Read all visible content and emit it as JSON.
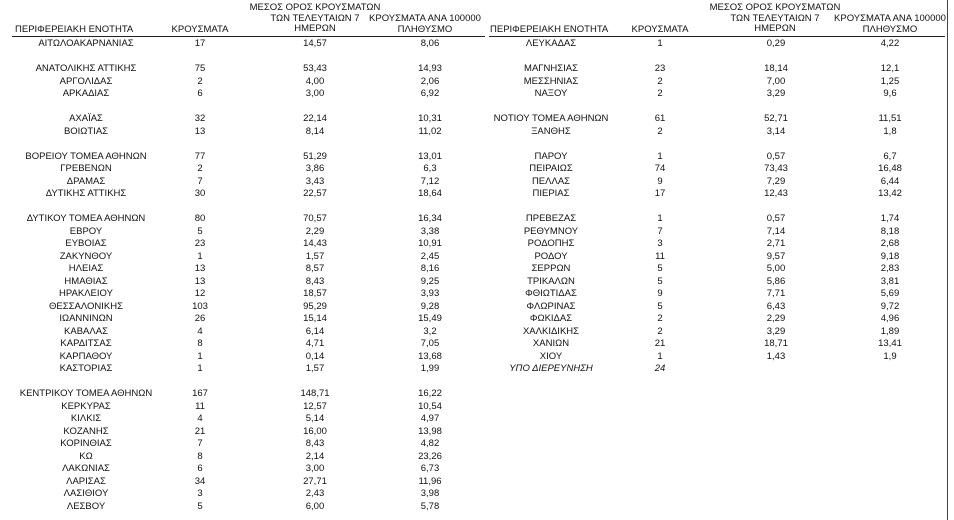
{
  "headers": {
    "region": "ΠΕΡΙΦΕΡΕΙΑΚΗ ΕΝΟΤΗΤΑ",
    "cases": "ΚΡΟΥΣΜΑΤΑ",
    "avg7_line1": "ΜΕΣΟΣ ΟΡΟΣ ΚΡΟΥΣΜΑΤΩΝ",
    "avg7_line2": "ΤΩΝ ΤΕΛΕΥΤΑΙΩΝ 7",
    "avg7_line3": "ΗΜΕΡΩΝ",
    "per100k_line1": "ΚΡΟΥΣΜΑΤΑ ΑΝΑ 100000",
    "per100k_line2": "ΠΛΗΘΥΣΜΟ"
  },
  "left_rows": [
    {
      "row": 0,
      "region": "ΑΙΤΩΛΟΑΚΑΡΝΑΝΙΑΣ",
      "cases": "17",
      "avg": "14,57",
      "per100k": "8,06"
    },
    {
      "row": 2,
      "region": "ΑΝΑΤΟΛΙΚΗΣ ΑΤΤΙΚΗΣ",
      "cases": "75",
      "avg": "53,43",
      "per100k": "14,93"
    },
    {
      "row": 3,
      "region": "ΑΡΓΟΛΙΔΑΣ",
      "cases": "2",
      "avg": "4,00",
      "per100k": "2,06"
    },
    {
      "row": 4,
      "region": "ΑΡΚΑΔΙΑΣ",
      "cases": "6",
      "avg": "3,00",
      "per100k": "6,92"
    },
    {
      "row": 6,
      "region": "ΑΧΑΪΑΣ",
      "cases": "32",
      "avg": "22,14",
      "per100k": "10,31"
    },
    {
      "row": 7,
      "region": "ΒΟΙΩΤΙΑΣ",
      "cases": "13",
      "avg": "8,14",
      "per100k": "11,02"
    },
    {
      "row": 9,
      "region": "ΒΟΡΕΙΟΥ ΤΟΜΕΑ ΑΘΗΝΩΝ",
      "cases": "77",
      "avg": "51,29",
      "per100k": "13,01"
    },
    {
      "row": 10,
      "region": "ΓΡΕΒΕΝΩΝ",
      "cases": "2",
      "avg": "3,86",
      "per100k": "6,3"
    },
    {
      "row": 11,
      "region": "ΔΡΑΜΑΣ",
      "cases": "7",
      "avg": "3,43",
      "per100k": "7,12"
    },
    {
      "row": 12,
      "region": "ΔΥΤΙΚΗΣ ΑΤΤΙΚΗΣ",
      "cases": "30",
      "avg": "22,57",
      "per100k": "18,64"
    },
    {
      "row": 14,
      "region": "ΔΥΤΙΚΟΥ ΤΟΜΕΑ ΑΘΗΝΩΝ",
      "cases": "80",
      "avg": "70,57",
      "per100k": "16,34"
    },
    {
      "row": 15,
      "region": "ΕΒΡΟΥ",
      "cases": "5",
      "avg": "2,29",
      "per100k": "3,38"
    },
    {
      "row": 16,
      "region": "ΕΥΒΟΙΑΣ",
      "cases": "23",
      "avg": "14,43",
      "per100k": "10,91"
    },
    {
      "row": 17,
      "region": "ΖΑΚΥΝΘΟΥ",
      "cases": "1",
      "avg": "1,57",
      "per100k": "2,45"
    },
    {
      "row": 18,
      "region": "ΗΛΕΙΑΣ",
      "cases": "13",
      "avg": "8,57",
      "per100k": "8,16"
    },
    {
      "row": 19,
      "region": "ΗΜΑΘΙΑΣ",
      "cases": "13",
      "avg": "8,43",
      "per100k": "9,25"
    },
    {
      "row": 20,
      "region": "ΗΡΑΚΛΕΙΟΥ",
      "cases": "12",
      "avg": "18,57",
      "per100k": "3,93"
    },
    {
      "row": 21,
      "region": "ΘΕΣΣΑΛΟΝΙΚΗΣ",
      "cases": "103",
      "avg": "95,29",
      "per100k": "9,28"
    },
    {
      "row": 22,
      "region": "ΙΩΑΝΝΙΝΩΝ",
      "cases": "26",
      "avg": "15,14",
      "per100k": "15,49"
    },
    {
      "row": 23,
      "region": "ΚΑΒΑΛΑΣ",
      "cases": "4",
      "avg": "6,14",
      "per100k": "3,2"
    },
    {
      "row": 24,
      "region": "ΚΑΡΔΙΤΣΑΣ",
      "cases": "8",
      "avg": "4,71",
      "per100k": "7,05"
    },
    {
      "row": 25,
      "region": "ΚΑΡΠΑΘΟΥ",
      "cases": "1",
      "avg": "0,14",
      "per100k": "13,68"
    },
    {
      "row": 26,
      "region": "ΚΑΣΤΟΡΙΑΣ",
      "cases": "1",
      "avg": "1,57",
      "per100k": "1,99"
    },
    {
      "row": 28,
      "region": "ΚΕΝΤΡΙΚΟΥ ΤΟΜΕΑ ΑΘΗΝΩΝ",
      "cases": "167",
      "avg": "148,71",
      "per100k": "16,22"
    },
    {
      "row": 29,
      "region": "ΚΕΡΚΥΡΑΣ",
      "cases": "11",
      "avg": "12,57",
      "per100k": "10,54"
    },
    {
      "row": 30,
      "region": "ΚΙΛΚΙΣ",
      "cases": "4",
      "avg": "5,14",
      "per100k": "4,97"
    },
    {
      "row": 31,
      "region": "ΚΟΖΑΝΗΣ",
      "cases": "21",
      "avg": "16,00",
      "per100k": "13,98"
    },
    {
      "row": 32,
      "region": "ΚΟΡΙΝΘΙΑΣ",
      "cases": "7",
      "avg": "8,43",
      "per100k": "4,82"
    },
    {
      "row": 33,
      "region": "ΚΩ",
      "cases": "8",
      "avg": "2,14",
      "per100k": "23,26"
    },
    {
      "row": 34,
      "region": "ΛΑΚΩΝΙΑΣ",
      "cases": "6",
      "avg": "3,00",
      "per100k": "6,73"
    },
    {
      "row": 35,
      "region": "ΛΑΡΙΣΑΣ",
      "cases": "34",
      "avg": "27,71",
      "per100k": "11,96"
    },
    {
      "row": 36,
      "region": "ΛΑΣΙΘΙΟΥ",
      "cases": "3",
      "avg": "2,43",
      "per100k": "3,98"
    },
    {
      "row": 37,
      "region": "ΛΕΣΒΟΥ",
      "cases": "5",
      "avg": "6,00",
      "per100k": "5,78"
    }
  ],
  "right_rows": [
    {
      "row": 0,
      "region": "ΛΕΥΚΑΔΑΣ",
      "cases": "1",
      "avg": "0,29",
      "per100k": "4,22"
    },
    {
      "row": 2,
      "region": "ΜΑΓΝΗΣΙΑΣ",
      "cases": "23",
      "avg": "18,14",
      "per100k": "12,1"
    },
    {
      "row": 3,
      "region": "ΜΕΣΣΗΝΙΑΣ",
      "cases": "2",
      "avg": "7,00",
      "per100k": "1,25"
    },
    {
      "row": 4,
      "region": "ΝΑΞΟΥ",
      "cases": "2",
      "avg": "3,29",
      "per100k": "9,6"
    },
    {
      "row": 6,
      "region": "ΝΟΤΙΟΥ ΤΟΜΕΑ ΑΘΗΝΩΝ",
      "cases": "61",
      "avg": "52,71",
      "per100k": "11,51"
    },
    {
      "row": 7,
      "region": "ΞΑΝΘΗΣ",
      "cases": "2",
      "avg": "3,14",
      "per100k": "1,8"
    },
    {
      "row": 9,
      "region": "ΠΑΡΟΥ",
      "cases": "1",
      "avg": "0,57",
      "per100k": "6,7"
    },
    {
      "row": 10,
      "region": "ΠΕΙΡΑΙΩΣ",
      "cases": "74",
      "avg": "73,43",
      "per100k": "16,48"
    },
    {
      "row": 11,
      "region": "ΠΕΛΛΑΣ",
      "cases": "9",
      "avg": "7,29",
      "per100k": "6,44"
    },
    {
      "row": 12,
      "region": "ΠΙΕΡΙΑΣ",
      "cases": "17",
      "avg": "12,43",
      "per100k": "13,42"
    },
    {
      "row": 14,
      "region": "ΠΡΕΒΕΖΑΣ",
      "cases": "1",
      "avg": "0,57",
      "per100k": "1,74"
    },
    {
      "row": 15,
      "region": "ΡΕΘΥΜΝΟΥ",
      "cases": "7",
      "avg": "7,14",
      "per100k": "8,18"
    },
    {
      "row": 16,
      "region": "ΡΟΔΟΠΗΣ",
      "cases": "3",
      "avg": "2,71",
      "per100k": "2,68"
    },
    {
      "row": 17,
      "region": "ΡΟΔΟΥ",
      "cases": "11",
      "avg": "9,57",
      "per100k": "9,18"
    },
    {
      "row": 18,
      "region": "ΣΕΡΡΩΝ",
      "cases": "5",
      "avg": "5,00",
      "per100k": "2,83"
    },
    {
      "row": 19,
      "region": "ΤΡΙΚΑΛΩΝ",
      "cases": "5",
      "avg": "5,86",
      "per100k": "3,81"
    },
    {
      "row": 20,
      "region": "ΦΘΙΩΤΙΔΑΣ",
      "cases": "9",
      "avg": "7,71",
      "per100k": "5,69"
    },
    {
      "row": 21,
      "region": "ΦΛΩΡΙΝΑΣ",
      "cases": "5",
      "avg": "6,43",
      "per100k": "9,72"
    },
    {
      "row": 22,
      "region": "ΦΩΚΙΔΑΣ",
      "cases": "2",
      "avg": "2,29",
      "per100k": "4,96"
    },
    {
      "row": 23,
      "region": "ΧΑΛΚΙΔΙΚΗΣ",
      "cases": "2",
      "avg": "3,29",
      "per100k": "1,89"
    },
    {
      "row": 24,
      "region": "ΧΑΝΙΩΝ",
      "cases": "21",
      "avg": "18,71",
      "per100k": "13,41"
    },
    {
      "row": 25,
      "region": "ΧΙΟΥ",
      "cases": "1",
      "avg": "1,43",
      "per100k": "1,9"
    },
    {
      "row": 26,
      "region": "ΥΠΟ ΔΙΕΡΕΥΝΗΣΗ",
      "cases": "24",
      "avg": "",
      "per100k": "",
      "italic": true
    }
  ]
}
